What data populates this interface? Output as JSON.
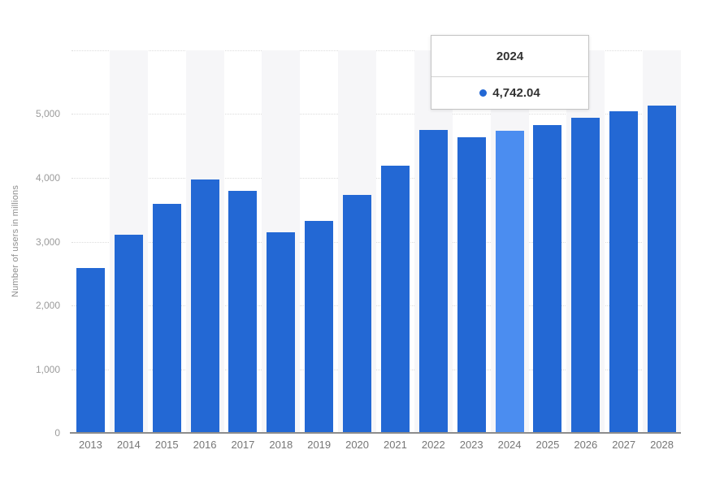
{
  "chart_data": {
    "type": "bar",
    "title": "",
    "categories": [
      "2013",
      "2014",
      "2015",
      "2016",
      "2017",
      "2018",
      "2019",
      "2020",
      "2021",
      "2022",
      "2023",
      "2024",
      "2025",
      "2026",
      "2027",
      "2028"
    ],
    "values": [
      2580,
      3110,
      3590,
      3980,
      3800,
      3150,
      3320,
      3730,
      4190,
      4750,
      4640,
      4742.04,
      4830,
      4940,
      5040,
      5130
    ],
    "xlabel": "",
    "ylabel": "Number of users in millions",
    "ylim": [
      0,
      6000
    ],
    "yticks": [
      {
        "label": "0",
        "value": 0
      },
      {
        "label": "1,000",
        "value": 1000
      },
      {
        "label": "2,000",
        "value": 2000
      },
      {
        "label": "3,000",
        "value": 3000
      },
      {
        "label": "4,000",
        "value": 4000
      },
      {
        "label": "5,000",
        "value": 5000
      },
      {
        "label": "",
        "value": 6000
      }
    ],
    "grid": true,
    "legend": false,
    "highlight_category": "2024",
    "striped_background_categories": [
      "2014",
      "2016",
      "2018",
      "2020",
      "2022",
      "2024",
      "2026",
      "2028"
    ]
  },
  "tooltip": {
    "year": "2024",
    "value": "4,742.04"
  },
  "colors": {
    "bar": "#2368d4",
    "bar_highlight": "#4b8df0",
    "stripe": "#f6f6f8",
    "gridline": "#dcdcdc",
    "axis_line": "#8c8c8c",
    "ytick_text": "#9b9b9b",
    "xtick_text": "#767676",
    "ylabel_text": "#8f8f8f",
    "tooltip_border": "#c3c3c3",
    "tooltip_text": "#333333"
  }
}
